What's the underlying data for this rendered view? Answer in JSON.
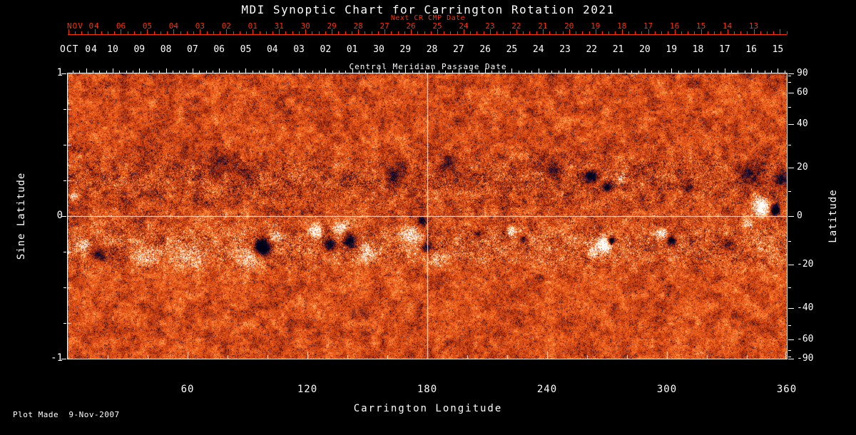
{
  "title": "MDI Synoptic Chart for Carrington Rotation 2021",
  "colors": {
    "background": "#000000",
    "frame": "#ffffff",
    "next_cr_axis": "#ff3000",
    "text": "#ffffff"
  },
  "top_axes": {
    "next_cr": {
      "month_label": "NOV 04",
      "axis_label": "Next CR CMP Date",
      "dates": [
        "06",
        "05",
        "04",
        "03",
        "02",
        "01",
        "31",
        "30",
        "29",
        "28",
        "27",
        "26",
        "25",
        "24",
        "23",
        "22",
        "21",
        "20",
        "19",
        "18",
        "17",
        "16",
        "15",
        "14",
        "13"
      ],
      "start_longitude_deg": 26.6,
      "step_longitude_deg": 13.2
    },
    "cmp": {
      "month_label": "OCT 04",
      "axis_label": "Central Meridian Passage Date",
      "dates": [
        "10",
        "09",
        "08",
        "07",
        "06",
        "05",
        "04",
        "03",
        "02",
        "01",
        "30",
        "29",
        "28",
        "27",
        "26",
        "25",
        "24",
        "23",
        "22",
        "21",
        "20",
        "19",
        "18",
        "17",
        "16",
        "15"
      ],
      "start_longitude_deg": 22.5,
      "step_longitude_deg": 13.32
    }
  },
  "footer": {
    "plot_made": "Plot Made  9-Nov-2007"
  },
  "chart_data": {
    "type": "heatmap",
    "title": "MDI Synoptic Chart for Carrington Rotation 2021",
    "description": "MDI photospheric magnetic field synoptic map for Carrington rotation 2021; orange mottled background with white (positive polarity) and dark navy (negative polarity) active regions, mostly in two activity belts near +/-15 degrees latitude.",
    "xlabel": "Carrington Longitude",
    "ylabel_left": "Sine Latitude",
    "ylabel_right": "Latitude",
    "xlim": [
      0,
      360
    ],
    "ylim_sine_latitude": [
      -1,
      1
    ],
    "x_ticks": [
      60,
      120,
      180,
      240,
      300,
      360
    ],
    "x_minor_tick_step_deg": 20,
    "y_ticks_sine": [
      1,
      0,
      -1
    ],
    "y_minor_tick_step_sine": 0.25,
    "y_ticks_latitude": [
      90,
      60,
      40,
      20,
      0,
      -20,
      -40,
      -60,
      -90
    ],
    "y_minor_tick_step_latitude": 10,
    "reference_lines": {
      "longitude_deg": 180,
      "sine_latitude": 0
    },
    "active_regions": [
      {
        "lon": 15,
        "sinlat": -0.27,
        "polarity": -1,
        "radius_deg": 5,
        "amplitude": 0.5
      },
      {
        "lon": 8,
        "sinlat": -0.2,
        "polarity": 1,
        "radius_deg": 4,
        "amplitude": 0.4
      },
      {
        "lon": 3,
        "sinlat": 0.14,
        "polarity": 1,
        "radius_deg": 2.5,
        "amplitude": 0.55
      },
      {
        "lon": 40,
        "sinlat": -0.3,
        "polarity": 1,
        "radius_deg": 8,
        "amplitude": 0.3
      },
      {
        "lon": 60,
        "sinlat": -0.28,
        "polarity": 1,
        "radius_deg": 9,
        "amplitude": 0.3
      },
      {
        "lon": 75,
        "sinlat": 0.38,
        "polarity": -1,
        "radius_deg": 8,
        "amplitude": 0.3
      },
      {
        "lon": 58,
        "sinlat": 0.45,
        "polarity": -1,
        "radius_deg": 6,
        "amplitude": 0.25
      },
      {
        "lon": 90,
        "sinlat": -0.3,
        "polarity": 1,
        "radius_deg": 8,
        "amplitude": 0.4
      },
      {
        "lon": 97,
        "sinlat": -0.22,
        "polarity": -1,
        "radius_deg": 6,
        "amplitude": 0.8
      },
      {
        "lon": 104,
        "sinlat": -0.14,
        "polarity": 1,
        "radius_deg": 4,
        "amplitude": 0.45
      },
      {
        "lon": 89,
        "sinlat": 0.3,
        "polarity": -1,
        "radius_deg": 5,
        "amplitude": 0.3
      },
      {
        "lon": 124,
        "sinlat": -0.1,
        "polarity": 1,
        "radius_deg": 4.5,
        "amplitude": 0.55
      },
      {
        "lon": 131,
        "sinlat": -0.2,
        "polarity": -1,
        "radius_deg": 4,
        "amplitude": 0.55
      },
      {
        "lon": 141,
        "sinlat": -0.17,
        "polarity": -1,
        "radius_deg": 4.5,
        "amplitude": 0.75
      },
      {
        "lon": 136,
        "sinlat": -0.08,
        "polarity": 1,
        "radius_deg": 4.5,
        "amplitude": 0.5
      },
      {
        "lon": 150,
        "sinlat": -0.25,
        "polarity": 1,
        "radius_deg": 6,
        "amplitude": 0.3
      },
      {
        "lon": 165,
        "sinlat": 0.3,
        "polarity": -1,
        "radius_deg": 8,
        "amplitude": 0.35
      },
      {
        "lon": 190,
        "sinlat": 0.36,
        "polarity": -1,
        "radius_deg": 7,
        "amplitude": 0.3
      },
      {
        "lon": 172,
        "sinlat": -0.12,
        "polarity": 1,
        "radius_deg": 5,
        "amplitude": 0.6
      },
      {
        "lon": 180,
        "sinlat": -0.22,
        "polarity": -1,
        "radius_deg": 4,
        "amplitude": 0.5
      },
      {
        "lon": 177,
        "sinlat": -0.03,
        "polarity": -1,
        "radius_deg": 3,
        "amplitude": 0.45
      },
      {
        "lon": 185,
        "sinlat": -0.3,
        "polarity": 1,
        "radius_deg": 5,
        "amplitude": 0.3
      },
      {
        "lon": 205,
        "sinlat": -0.12,
        "polarity": -1,
        "radius_deg": 3,
        "amplitude": 0.4
      },
      {
        "lon": 222,
        "sinlat": -0.1,
        "polarity": 1,
        "radius_deg": 3,
        "amplitude": 0.5
      },
      {
        "lon": 228,
        "sinlat": -0.16,
        "polarity": -1,
        "radius_deg": 2.5,
        "amplitude": 0.45
      },
      {
        "lon": 243,
        "sinlat": 0.32,
        "polarity": -1,
        "radius_deg": 5,
        "amplitude": 0.35
      },
      {
        "lon": 262,
        "sinlat": 0.28,
        "polarity": -1,
        "radius_deg": 4.5,
        "amplitude": 0.6
      },
      {
        "lon": 270,
        "sinlat": 0.2,
        "polarity": -1,
        "radius_deg": 3,
        "amplitude": 0.5
      },
      {
        "lon": 277,
        "sinlat": 0.26,
        "polarity": 1,
        "radius_deg": 3.5,
        "amplitude": 0.45
      },
      {
        "lon": 268,
        "sinlat": -0.2,
        "polarity": 1,
        "radius_deg": 5,
        "amplitude": 0.9
      },
      {
        "lon": 272,
        "sinlat": -0.17,
        "polarity": -1,
        "radius_deg": 2.5,
        "amplitude": 0.95
      },
      {
        "lon": 263,
        "sinlat": -0.26,
        "polarity": 1,
        "radius_deg": 3,
        "amplitude": 0.5
      },
      {
        "lon": 297,
        "sinlat": -0.12,
        "polarity": 1,
        "radius_deg": 3.5,
        "amplitude": 0.6
      },
      {
        "lon": 302,
        "sinlat": -0.17,
        "polarity": -1,
        "radius_deg": 3,
        "amplitude": 0.7
      },
      {
        "lon": 310,
        "sinlat": 0.2,
        "polarity": -1,
        "radius_deg": 4,
        "amplitude": 0.3
      },
      {
        "lon": 342,
        "sinlat": 0.3,
        "polarity": -1,
        "radius_deg": 9,
        "amplitude": 0.4
      },
      {
        "lon": 357,
        "sinlat": 0.25,
        "polarity": -1,
        "radius_deg": 5,
        "amplitude": 0.45
      },
      {
        "lon": 347,
        "sinlat": 0.07,
        "polarity": 1,
        "radius_deg": 5.5,
        "amplitude": 1.0
      },
      {
        "lon": 354,
        "sinlat": 0.04,
        "polarity": -1,
        "radius_deg": 3.5,
        "amplitude": 0.9
      },
      {
        "lon": 340,
        "sinlat": -0.05,
        "polarity": 1,
        "radius_deg": 3,
        "amplitude": 0.4
      },
      {
        "lon": 330,
        "sinlat": -0.2,
        "polarity": -1,
        "radius_deg": 4,
        "amplitude": 0.35
      }
    ]
  }
}
